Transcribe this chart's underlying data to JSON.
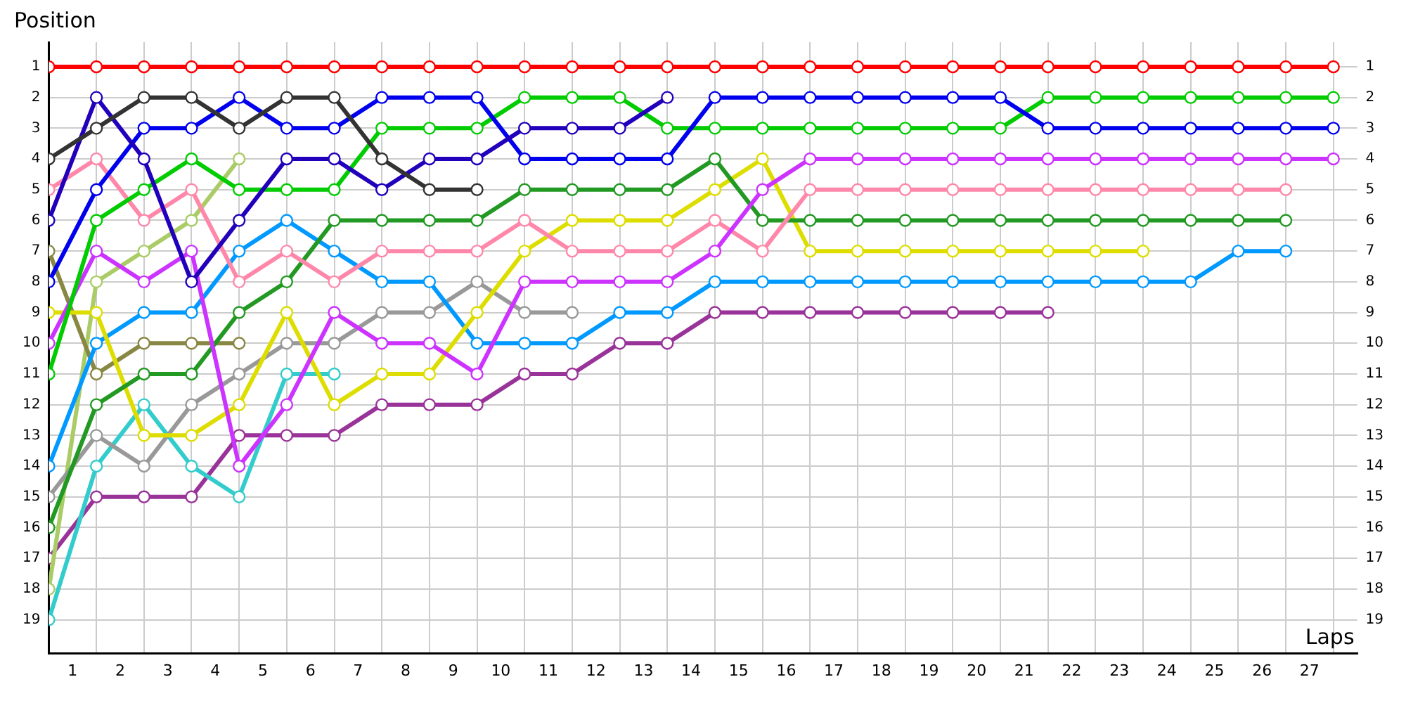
{
  "chart_data": {
    "type": "line",
    "xlabel": "Laps",
    "ylabel": "Position",
    "x": [
      0,
      1,
      2,
      3,
      4,
      5,
      6,
      7,
      8,
      9,
      10,
      11,
      12,
      13,
      14,
      15,
      16,
      17,
      18,
      19,
      20,
      21,
      22,
      23,
      24,
      25,
      26,
      27
    ],
    "xlim": [
      0,
      27.5
    ],
    "xticks": [
      {
        "value": 0,
        "label": null
      },
      {
        "value": 0.5,
        "label": "1"
      },
      {
        "value": 1,
        "label": null
      },
      {
        "value": 1.5,
        "label": "2"
      },
      {
        "value": 2,
        "label": null
      },
      {
        "value": 2.5,
        "label": "3"
      },
      {
        "value": 3,
        "label": null
      },
      {
        "value": 3.5,
        "label": "4"
      },
      {
        "value": 4,
        "label": null
      },
      {
        "value": 4.5,
        "label": "5"
      },
      {
        "value": 5,
        "label": null
      },
      {
        "value": 5.5,
        "label": "6"
      },
      {
        "value": 6,
        "label": null
      },
      {
        "value": 6.5,
        "label": "7"
      },
      {
        "value": 7,
        "label": null
      },
      {
        "value": 7.5,
        "label": "8"
      },
      {
        "value": 8,
        "label": null
      },
      {
        "value": 8.5,
        "label": "9"
      },
      {
        "value": 9,
        "label": null
      },
      {
        "value": 9.5,
        "label": "10"
      },
      {
        "value": 10,
        "label": null
      },
      {
        "value": 10.5,
        "label": "11"
      },
      {
        "value": 11,
        "label": null
      },
      {
        "value": 11.5,
        "label": "12"
      },
      {
        "value": 12,
        "label": null
      },
      {
        "value": 12.5,
        "label": "13"
      },
      {
        "value": 13,
        "label": null
      },
      {
        "value": 13.5,
        "label": "14"
      },
      {
        "value": 14,
        "label": null
      },
      {
        "value": 14.5,
        "label": "15"
      },
      {
        "value": 15,
        "label": null
      },
      {
        "value": 15.5,
        "label": "16"
      },
      {
        "value": 16,
        "label": null
      },
      {
        "value": 16.5,
        "label": "17"
      },
      {
        "value": 17,
        "label": null
      },
      {
        "value": 17.5,
        "label": "18"
      },
      {
        "value": 18,
        "label": null
      },
      {
        "value": 18.5,
        "label": "19"
      },
      {
        "value": 19,
        "label": null
      },
      {
        "value": 19.5,
        "label": "20"
      },
      {
        "value": 20,
        "label": null
      },
      {
        "value": 20.5,
        "label": "21"
      },
      {
        "value": 21,
        "label": null
      },
      {
        "value": 21.5,
        "label": "22"
      },
      {
        "value": 22,
        "label": null
      },
      {
        "value": 22.5,
        "label": "23"
      },
      {
        "value": 23,
        "label": null
      },
      {
        "value": 23.5,
        "label": "24"
      },
      {
        "value": 24,
        "label": null
      },
      {
        "value": 24.5,
        "label": "25"
      },
      {
        "value": 25,
        "label": null
      },
      {
        "value": 25.5,
        "label": "26"
      },
      {
        "value": 26,
        "label": null
      },
      {
        "value": 26.5,
        "label": "27"
      },
      {
        "value": 27,
        "label": null
      }
    ],
    "ylim": [
      20.1,
      0.2
    ],
    "yticks": [
      1,
      2,
      3,
      4,
      5,
      6,
      7,
      8,
      9,
      10,
      11,
      12,
      13,
      14,
      15,
      16,
      17,
      18,
      19
    ],
    "y2lim": [
      20.1,
      0.2
    ],
    "y2ticks": [
      1,
      2,
      3,
      4,
      5,
      6,
      7,
      8,
      9,
      10,
      11,
      12,
      13,
      14,
      15,
      16,
      17,
      18,
      19
    ],
    "grid": true,
    "legend": false,
    "marker": "circle",
    "line_style": "solid",
    "series": [
      {
        "color": "#993399",
        "values": [
          17,
          15,
          15,
          15,
          13,
          13,
          13,
          12,
          12,
          12,
          11,
          11,
          10,
          10,
          9,
          9,
          9,
          9,
          9,
          9,
          9,
          9,
          null,
          null,
          null,
          null,
          null,
          null
        ]
      },
      {
        "color": "#33cccc",
        "values": [
          19,
          14,
          12,
          14,
          15,
          11,
          11,
          null,
          null,
          null,
          null,
          null,
          null,
          null,
          null,
          null,
          null,
          null,
          null,
          null,
          null,
          null,
          null,
          null,
          null,
          null,
          null,
          null
        ]
      },
      {
        "color": "#aacc66",
        "values": [
          18,
          8,
          7,
          6,
          4,
          null,
          null,
          null,
          null,
          null,
          null,
          null,
          null,
          null,
          null,
          null,
          null,
          null,
          null,
          null,
          null,
          null,
          null,
          null,
          null,
          null,
          null,
          null
        ]
      },
      {
        "color": "#888844",
        "values": [
          7,
          11,
          10,
          10,
          10,
          null,
          null,
          null,
          null,
          null,
          null,
          null,
          null,
          null,
          null,
          null,
          null,
          null,
          null,
          null,
          null,
          null,
          null,
          null,
          null,
          null,
          null,
          null
        ]
      },
      {
        "color": "#999999",
        "values": [
          15,
          13,
          14,
          12,
          11,
          10,
          10,
          9,
          9,
          8,
          9,
          9,
          null,
          null,
          null,
          null,
          null,
          null,
          null,
          null,
          null,
          null,
          null,
          null,
          null,
          null,
          null,
          null
        ]
      },
      {
        "color": "#0099ff",
        "values": [
          14,
          10,
          9,
          9,
          7,
          6,
          7,
          8,
          8,
          10,
          10,
          10,
          9,
          9,
          8,
          8,
          8,
          8,
          8,
          8,
          8,
          8,
          8,
          8,
          8,
          7,
          7,
          null
        ]
      },
      {
        "color": "#dddd00",
        "values": [
          9,
          9,
          13,
          13,
          12,
          9,
          12,
          11,
          11,
          9,
          7,
          6,
          6,
          6,
          5,
          4,
          7,
          7,
          7,
          7,
          7,
          7,
          7,
          7,
          null,
          null,
          null,
          null
        ]
      },
      {
        "color": "#229922",
        "values": [
          16,
          12,
          11,
          11,
          9,
          8,
          6,
          6,
          6,
          6,
          5,
          5,
          5,
          5,
          4,
          6,
          6,
          6,
          6,
          6,
          6,
          6,
          6,
          6,
          6,
          6,
          6,
          null
        ]
      },
      {
        "color": "#ff88aa",
        "values": [
          5,
          4,
          6,
          5,
          8,
          7,
          8,
          7,
          7,
          7,
          6,
          7,
          7,
          7,
          6,
          7,
          5,
          5,
          5,
          5,
          5,
          5,
          5,
          5,
          5,
          5,
          5,
          null
        ]
      },
      {
        "color": "#cc33ff",
        "values": [
          10,
          7,
          8,
          7,
          14,
          12,
          9,
          10,
          10,
          11,
          8,
          8,
          8,
          8,
          7,
          5,
          4,
          4,
          4,
          4,
          4,
          4,
          4,
          4,
          4,
          4,
          4,
          4
        ]
      },
      {
        "color": "#00cc00",
        "values": [
          11,
          6,
          5,
          4,
          5,
          5,
          5,
          3,
          3,
          3,
          2,
          2,
          2,
          3,
          3,
          3,
          3,
          3,
          3,
          3,
          3,
          2,
          2,
          2,
          2,
          2,
          2,
          2
        ]
      },
      {
        "color": "#0000ee",
        "values": [
          8,
          5,
          3,
          3,
          2,
          3,
          3,
          2,
          2,
          2,
          4,
          4,
          4,
          4,
          2,
          2,
          2,
          2,
          2,
          2,
          2,
          3,
          3,
          3,
          3,
          3,
          3,
          3
        ]
      },
      {
        "color": "#2200bb",
        "values": [
          6,
          2,
          4,
          8,
          6,
          4,
          4,
          5,
          4,
          4,
          3,
          3,
          3,
          2,
          null,
          null,
          null,
          null,
          null,
          null,
          null,
          null,
          null,
          null,
          null,
          null,
          null,
          null
        ]
      },
      {
        "color": "#333333",
        "values": [
          4,
          3,
          2,
          2,
          3,
          2,
          2,
          4,
          5,
          5,
          null,
          null,
          null,
          null,
          null,
          null,
          null,
          null,
          null,
          null,
          null,
          null,
          null,
          null,
          null,
          null,
          null,
          null
        ]
      },
      {
        "color": "#ff0000",
        "values": [
          1,
          1,
          1,
          1,
          1,
          1,
          1,
          1,
          1,
          1,
          1,
          1,
          1,
          1,
          1,
          1,
          1,
          1,
          1,
          1,
          1,
          1,
          1,
          1,
          1,
          1,
          1,
          1
        ]
      }
    ]
  }
}
